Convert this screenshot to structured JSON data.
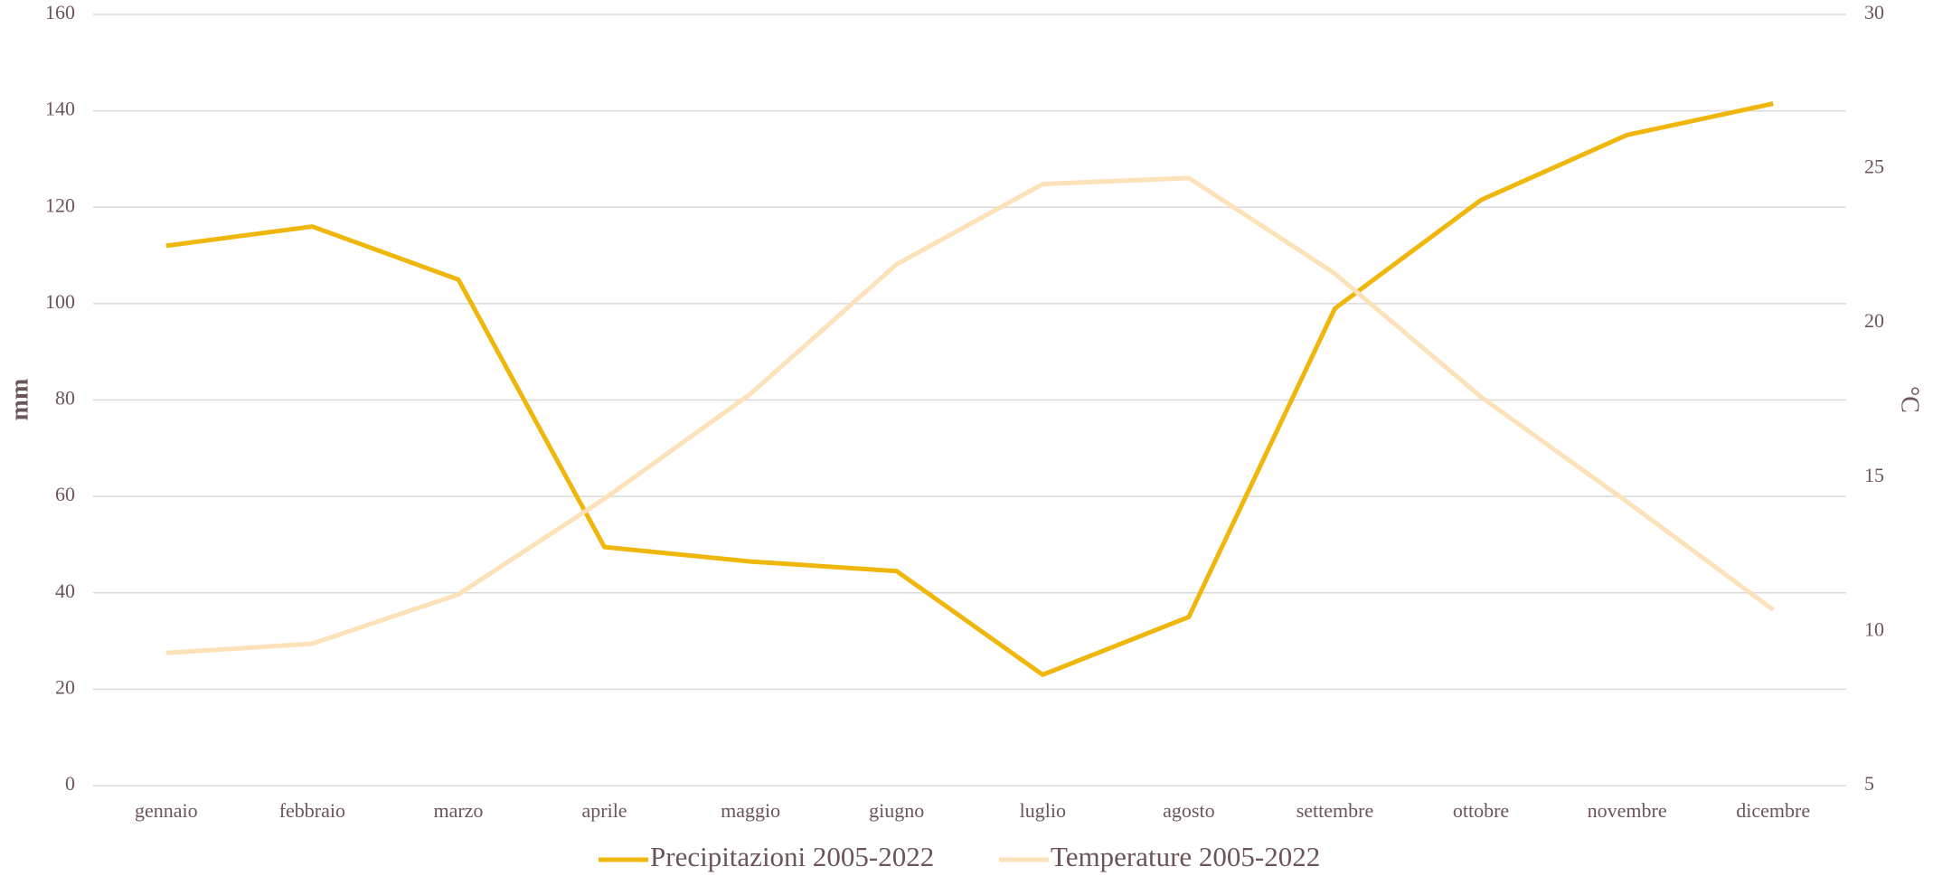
{
  "chart_data": {
    "type": "line",
    "categories": [
      "gennaio",
      "febbraio",
      "marzo",
      "aprile",
      "maggio",
      "giugno",
      "luglio",
      "agosto",
      "settembre",
      "ottobre",
      "novembre",
      "dicembre"
    ],
    "series": [
      {
        "name": "Precipitazioni 2005-2022",
        "color": "#efb60c",
        "values": [
          112,
          116,
          105,
          49.5,
          46.5,
          44.5,
          23,
          35,
          99,
          121.5,
          135,
          141.5
        ]
      },
      {
        "name": "Temperature 2005-2022",
        "color": "#fde1b8",
        "axis": "y2",
        "values": [
          9.3,
          9.6,
          11.2,
          14.3,
          17.7,
          21.9,
          24.5,
          24.7,
          21.6,
          17.6,
          14.2,
          10.7
        ]
      }
    ],
    "ylabel": "mm",
    "y2label": "°C",
    "ylim": [
      0,
      160
    ],
    "yticks": [
      0,
      20,
      40,
      60,
      80,
      100,
      120,
      140,
      160
    ],
    "y2lim": [
      5,
      30
    ],
    "y2ticks": [
      5,
      10,
      15,
      20,
      25,
      30
    ],
    "grid": true,
    "legend": "bottom"
  }
}
